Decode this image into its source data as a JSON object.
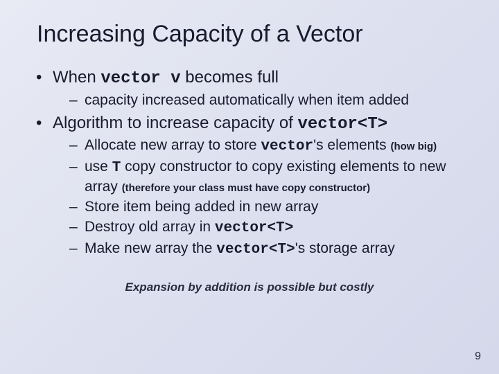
{
  "title": "Increasing Capacity of a Vector",
  "b1": {
    "pre": "When ",
    "code": "vector v",
    "post": " becomes full",
    "sub1": "capacity increased automatically when item added"
  },
  "b2": {
    "pre": "Algorithm to increase capacity of ",
    "code": "vector<T>",
    "sub1": {
      "pre": "Allocate new array to store ",
      "code": "vector",
      "post": "'s elements ",
      "aside": "(how big)"
    },
    "sub2": {
      "pre": "use ",
      "code": "T",
      "post": " copy constructor to copy existing elements to new array ",
      "aside": "(therefore your class must have copy constructor)"
    },
    "sub3": "Store item being added in new array",
    "sub4": {
      "pre": "Destroy old array in ",
      "code": "vector<T>"
    },
    "sub5": {
      "pre": "Make new array the ",
      "code": "vector<T>",
      "post": "'s storage array"
    }
  },
  "footnote": "Expansion by addition is possible but costly",
  "pagenum": "9"
}
